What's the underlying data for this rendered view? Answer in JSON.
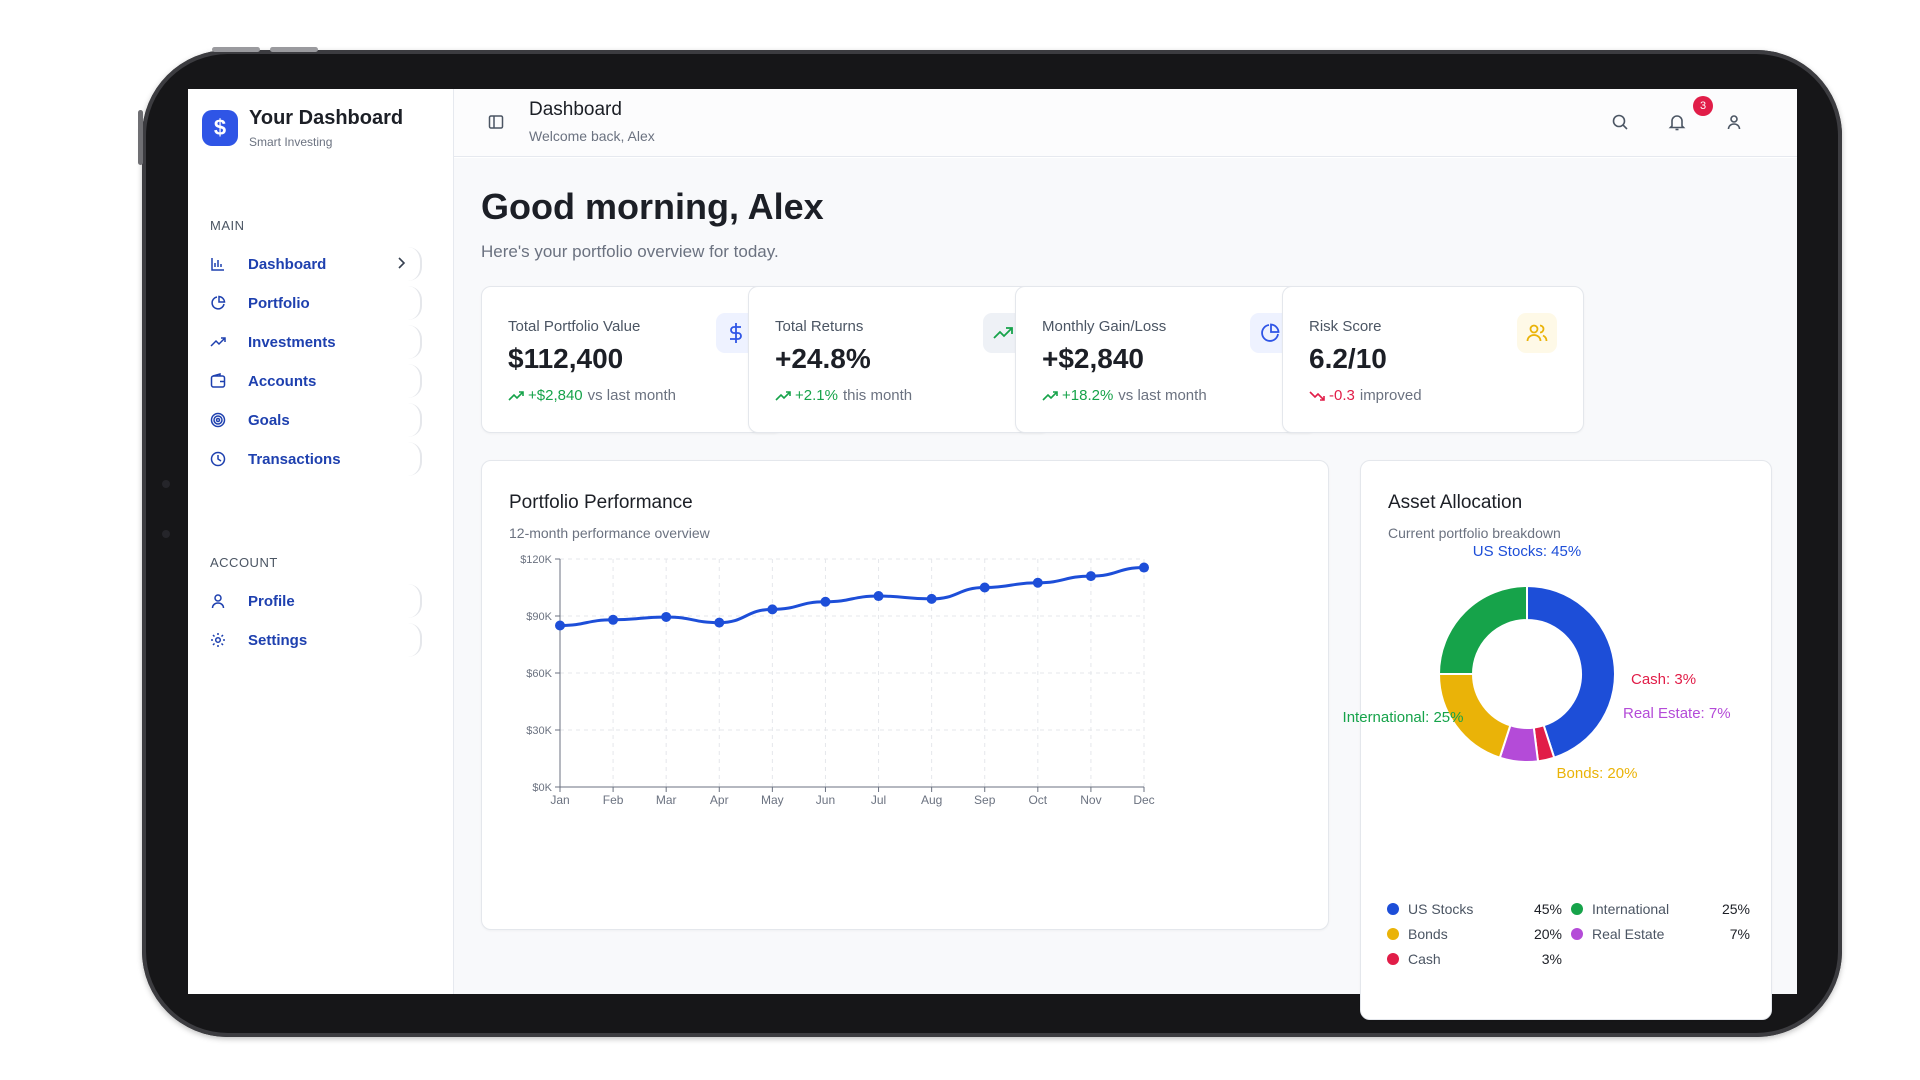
{
  "brand": {
    "title": "Your Dashboard",
    "subtitle": "Smart Investing",
    "logo_icon": "dollar-icon",
    "accent": "#2f55e6"
  },
  "sidebar": {
    "main_label": "MAIN",
    "account_label": "ACCOUNT",
    "main_items": [
      {
        "label": "Dashboard",
        "icon": "bar-chart-icon"
      },
      {
        "label": "Portfolio",
        "icon": "pie-chart-icon"
      },
      {
        "label": "Investments",
        "icon": "trending-up-icon"
      },
      {
        "label": "Accounts",
        "icon": "wallet-icon"
      },
      {
        "label": "Goals",
        "icon": "target-icon"
      },
      {
        "label": "Transactions",
        "icon": "clock-icon"
      }
    ],
    "account_items": [
      {
        "label": "Profile",
        "icon": "user-icon"
      },
      {
        "label": "Settings",
        "icon": "gear-icon"
      }
    ]
  },
  "header": {
    "title": "Dashboard",
    "subtitle": "Welcome back, Alex",
    "notification_count": "3"
  },
  "main": {
    "greeting": "Good morning, Alex",
    "greeting_sub": "Here's your portfolio overview for today."
  },
  "stats": [
    {
      "label": "Total Portfolio Value",
      "value": "$112,400",
      "change": "+$2,840",
      "note": "vs last month",
      "trend": "up",
      "icon": "dollar-icon",
      "icon_color": "#2f55e6",
      "icon_bg": "#eef2ff"
    },
    {
      "label": "Total Returns",
      "value": "+24.8%",
      "change": "+2.1%",
      "note": "this month",
      "trend": "up",
      "icon": "trending-up-icon",
      "icon_color": "#16a34a",
      "icon_bg": "#eef1f6"
    },
    {
      "label": "Monthly Gain/Loss",
      "value": "+$2,840",
      "change": "+18.2%",
      "note": "vs last month",
      "trend": "up",
      "icon": "pie-chart-icon",
      "icon_color": "#2f55e6",
      "icon_bg": "#eef2ff"
    },
    {
      "label": "Risk Score",
      "value": "6.2/10",
      "change": "-0.3",
      "note": "improved",
      "trend": "down",
      "icon": "users-icon",
      "icon_color": "#eab308",
      "icon_bg": "#fef9e7"
    }
  ],
  "colors": {
    "positive": "#16a34a",
    "negative": "#e11d48",
    "line": "#1d4ed8"
  },
  "performance": {
    "title": "Portfolio Performance",
    "subtitle": "12-month performance overview"
  },
  "allocation": {
    "title": "Asset Allocation",
    "subtitle": "Current portfolio breakdown"
  },
  "chart_data": [
    {
      "type": "line",
      "title": "Portfolio Performance",
      "x": [
        "Jan",
        "Feb",
        "Mar",
        "Apr",
        "May",
        "Jun",
        "Jul",
        "Aug",
        "Sep",
        "Oct",
        "Nov",
        "Dec"
      ],
      "series": [
        {
          "values": [
            85000,
            88000,
            89500,
            86500,
            93500,
            97500,
            100500,
            99000,
            105000,
            107500,
            111000,
            115500
          ]
        }
      ],
      "ylim": [
        0,
        120000
      ],
      "yticks": [
        "$0K",
        "$30K",
        "$60K",
        "$90K",
        "$120K"
      ],
      "grid": true
    },
    {
      "type": "pie",
      "title": "Asset Allocation",
      "slices": [
        {
          "name": "US Stocks",
          "value": 45,
          "color": "#1d4ed8",
          "label": "US Stocks: 45%",
          "display": "45%"
        },
        {
          "name": "Cash",
          "value": 3,
          "color": "#e11d48",
          "label": "Cash: 3%",
          "display": "3%"
        },
        {
          "name": "Real Estate",
          "value": 7,
          "color": "#b44bd8",
          "label": "Real Estate: 7%",
          "display": "7%"
        },
        {
          "name": "Bonds",
          "value": 20,
          "color": "#eab308",
          "label": "Bonds: 20%",
          "display": "20%"
        },
        {
          "name": "International",
          "value": 25,
          "color": "#16a34a",
          "label": "International: 25%",
          "display": "25%"
        }
      ],
      "legend_order": [
        "US Stocks",
        "International",
        "Bonds",
        "Real Estate",
        "Cash"
      ]
    }
  ]
}
